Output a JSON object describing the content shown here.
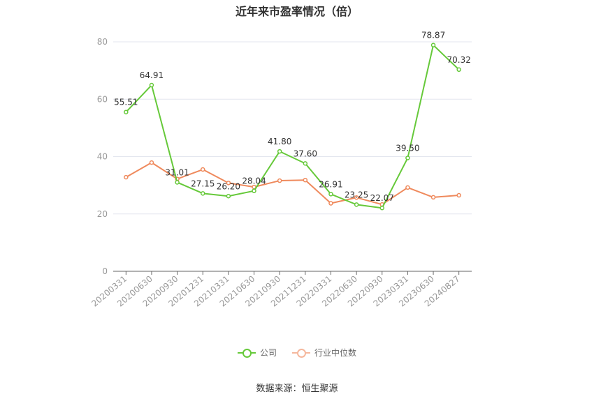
{
  "chart_data": {
    "type": "line",
    "title": "近年来市盈率情况（倍）",
    "categories": [
      "20200331",
      "20200630",
      "20200930",
      "20201231",
      "20210331",
      "20210630",
      "20210930",
      "20211231",
      "20220331",
      "20220630",
      "20220930",
      "20230331",
      "20230630",
      "20240827"
    ],
    "series": [
      {
        "name": "公司",
        "color": "#66c93a",
        "values": [
          55.51,
          64.91,
          31.01,
          27.15,
          26.2,
          28.04,
          41.8,
          37.6,
          26.91,
          23.25,
          22.07,
          39.5,
          78.87,
          70.32
        ],
        "labels": [
          "55.51",
          "64.91",
          "31.01",
          "27.15",
          "26.20",
          "28.04",
          "41.80",
          "37.60",
          "26.91",
          "23.25",
          "22.07",
          "39.50",
          "78.87",
          "70.32"
        ]
      },
      {
        "name": "行业中位数",
        "color": "#ef8a5d",
        "values": [
          32.8,
          37.9,
          32.2,
          35.5,
          30.8,
          29.4,
          31.6,
          31.8,
          23.7,
          25.7,
          23.3,
          29.2,
          25.8,
          26.5
        ]
      }
    ],
    "yticks": [
      0,
      20,
      40,
      60,
      80
    ],
    "ylim": [
      0,
      80
    ],
    "grid": true,
    "legend_position": "bottom"
  },
  "source": "数据来源：恒生聚源"
}
